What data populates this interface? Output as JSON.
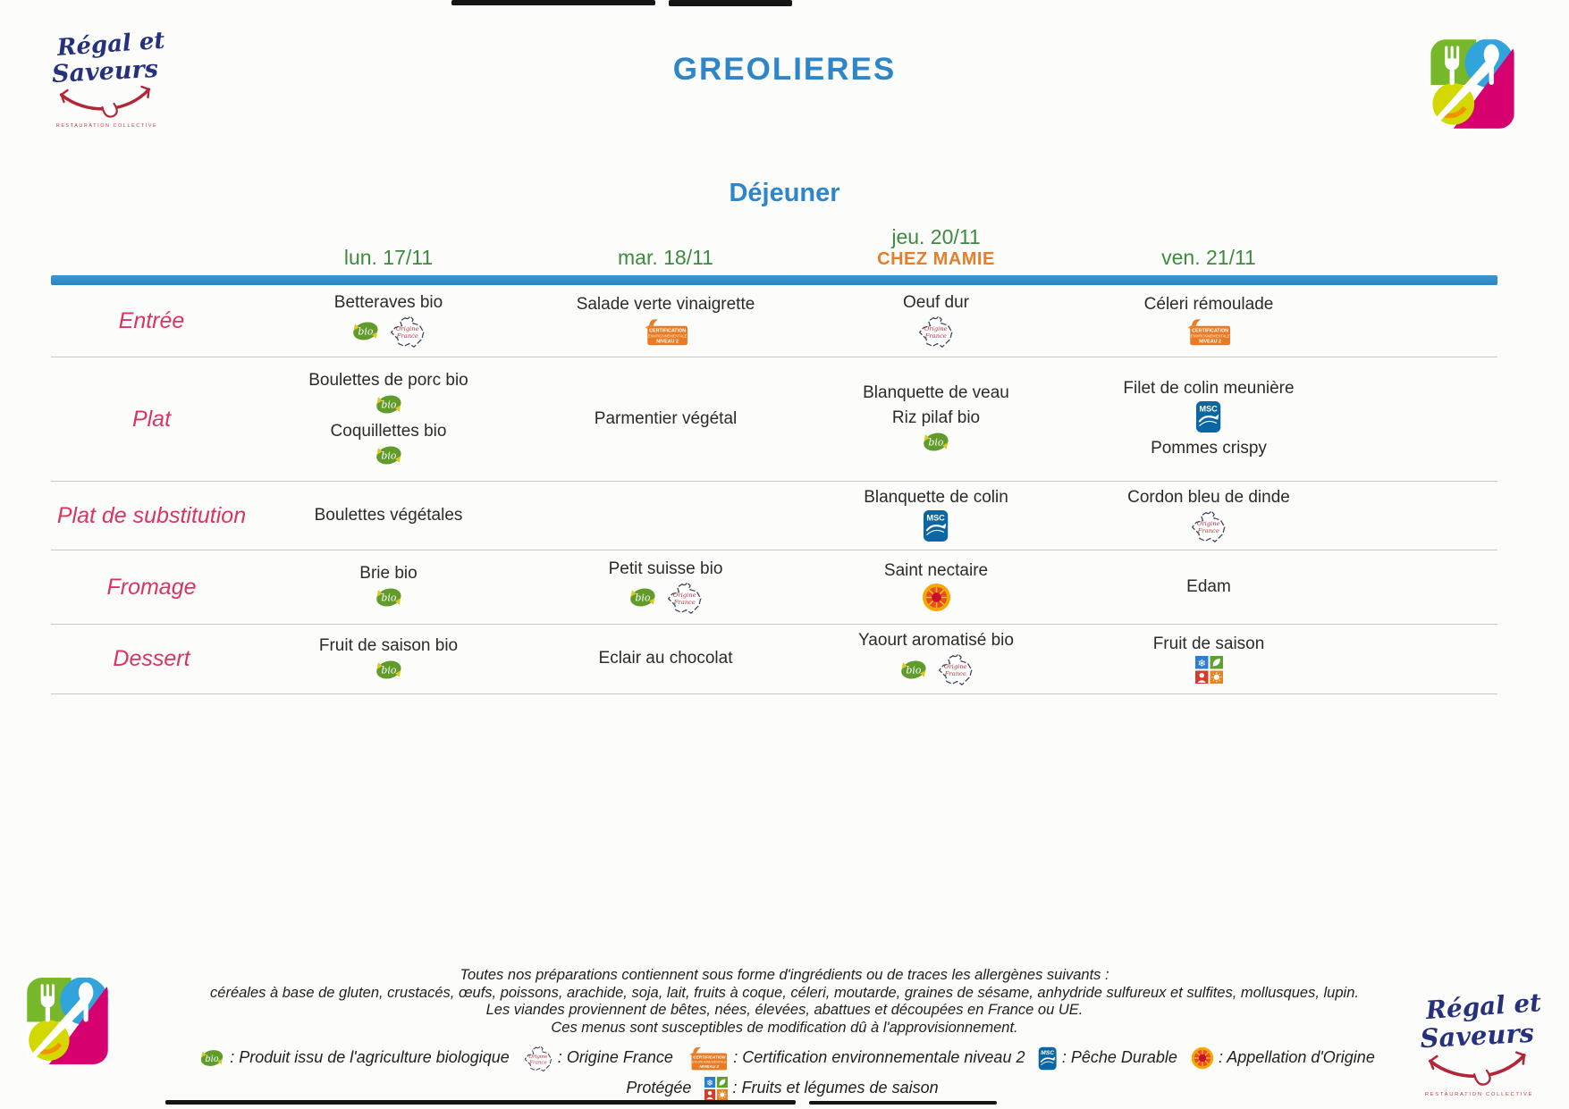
{
  "header": {
    "title": "GREOLIERES",
    "meal_title": "Déjeuner",
    "brand": {
      "line1": "Régal et",
      "line2": "Saveurs",
      "caption": "RESTAURATION COLLECTIVE"
    }
  },
  "table": {
    "days": [
      {
        "label": "lun. 17/11",
        "sub": ""
      },
      {
        "label": "mar. 18/11",
        "sub": ""
      },
      {
        "label": "jeu. 20/11",
        "sub": "CHEZ MAMIE"
      },
      {
        "label": "ven. 21/11",
        "sub": ""
      }
    ],
    "rows": [
      {
        "label": "Entrée",
        "cells": [
          {
            "items": [
              {
                "text": "Betteraves bio",
                "icons": [
                  "bio",
                  "france"
                ]
              }
            ]
          },
          {
            "items": [
              {
                "text": "Salade verte vinaigrette",
                "icons": [
                  "cert"
                ]
              }
            ]
          },
          {
            "items": [
              {
                "text": "Oeuf dur",
                "icons": [
                  "france"
                ]
              }
            ]
          },
          {
            "items": [
              {
                "text": "Céleri rémoulade",
                "icons": [
                  "cert"
                ]
              }
            ]
          }
        ]
      },
      {
        "label": "Plat",
        "cells": [
          {
            "items": [
              {
                "text": "Boulettes de porc bio",
                "icons": [
                  "bio"
                ]
              },
              {
                "text": "Coquillettes bio",
                "icons": [
                  "bio"
                ]
              }
            ]
          },
          {
            "items": [
              {
                "text": "Parmentier végétal",
                "icons": []
              }
            ]
          },
          {
            "items": [
              {
                "text": "Blanquette de veau",
                "icons": []
              },
              {
                "text": "Riz pilaf bio",
                "icons": [
                  "bio"
                ]
              }
            ]
          },
          {
            "items": [
              {
                "text": "Filet de colin meunière",
                "icons": [
                  "msc"
                ]
              },
              {
                "text": "Pommes crispy",
                "icons": []
              }
            ]
          }
        ]
      },
      {
        "label": "Plat de substitution",
        "cells": [
          {
            "items": [
              {
                "text": "Boulettes végétales",
                "icons": []
              }
            ]
          },
          {
            "items": []
          },
          {
            "items": [
              {
                "text": "Blanquette de colin",
                "icons": [
                  "msc"
                ]
              }
            ]
          },
          {
            "items": [
              {
                "text": "Cordon bleu de dinde",
                "icons": [
                  "france"
                ]
              }
            ]
          }
        ]
      },
      {
        "label": "Fromage",
        "cells": [
          {
            "items": [
              {
                "text": "Brie bio",
                "icons": [
                  "bio"
                ]
              }
            ]
          },
          {
            "items": [
              {
                "text": "Petit suisse bio",
                "icons": [
                  "bio",
                  "france"
                ]
              }
            ]
          },
          {
            "items": [
              {
                "text": "Saint nectaire",
                "icons": [
                  "aop"
                ]
              }
            ]
          },
          {
            "items": [
              {
                "text": "Edam",
                "icons": []
              }
            ]
          }
        ]
      },
      {
        "label": "Dessert",
        "cells": [
          {
            "items": [
              {
                "text": "Fruit de saison bio",
                "icons": [
                  "bio"
                ]
              }
            ]
          },
          {
            "items": [
              {
                "text": "Eclair au chocolat",
                "icons": []
              }
            ]
          },
          {
            "items": [
              {
                "text": "Yaourt aromatisé bio",
                "icons": [
                  "bio",
                  "france"
                ]
              }
            ]
          },
          {
            "items": [
              {
                "text": "Fruit de saison",
                "icons": [
                  "seasonal"
                ]
              }
            ]
          }
        ]
      }
    ]
  },
  "footer": {
    "notes": [
      "Toutes nos préparations contiennent sous forme d'ingrédients ou de traces les allergènes suivants :",
      "céréales à base de gluten, crustacés, œufs, poissons, arachide, soja, lait, fruits à coque, céleri, moutarde, graines de sésame, anhydride sulfureux et sulfites, mollusques, lupin.",
      "Les viandes proviennent de bêtes, nées, élevées, abattues et découpées en France ou UE.",
      "Ces menus sont susceptibles de modification dû à l'approvisionnement."
    ],
    "legend": [
      {
        "icons": [
          "bio"
        ],
        "label": "Produit issu de l'agriculture biologique"
      },
      {
        "icons": [
          "france"
        ],
        "label": "Origine France"
      },
      {
        "icons": [
          "cert"
        ],
        "label": "Certification environnementale niveau 2"
      },
      {
        "icons": [
          "msc"
        ],
        "label": "Pêche Durable"
      },
      {
        "icons": [
          "aop"
        ],
        "label": "Appellation d'Origine Protégée"
      },
      {
        "icons": [
          "seasonal"
        ],
        "label": "Fruits et légumes de saison"
      }
    ]
  },
  "icon_labels": {
    "bio": "bio",
    "cert_line1": "CERTIFICATION",
    "cert_line2": "ENVIRONNEMENTALE",
    "cert_line3": "NIVEAU 2",
    "france_line1": "Origine",
    "france_line2": "France",
    "msc": "MSC"
  },
  "colors": {
    "title_blue": "#2e86c8",
    "date_green": "#3d8b3d",
    "chez_mamie_orange": "#e0802e",
    "row_label_red": "#d9355f",
    "divider_blue": "#2e8fd0",
    "bio_green": "#5f9c2c",
    "cert_orange": "#e87b24",
    "msc_blue": "#0b67a3",
    "brand_blue": "#26317e",
    "brand_red": "#b32638"
  }
}
